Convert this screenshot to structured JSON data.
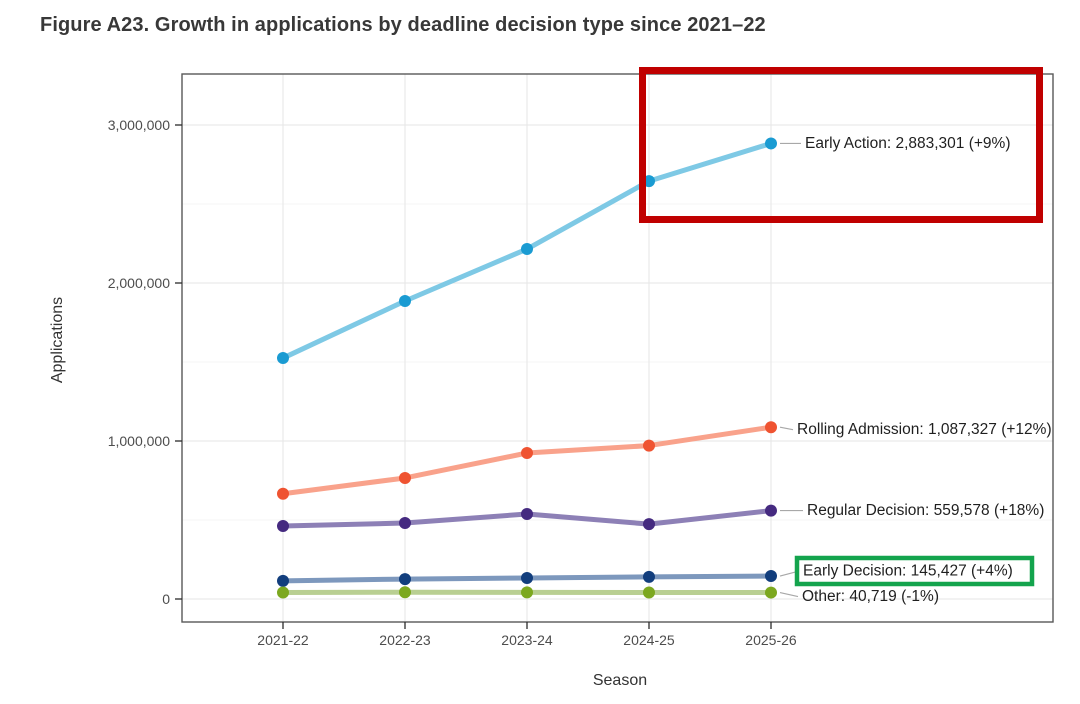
{
  "chart_data": {
    "type": "line",
    "title": "Figure A23. Growth in applications by deadline decision type since 2021–22",
    "xlabel": "Season",
    "ylabel": "Applications",
    "categories": [
      "2021-22",
      "2022-23",
      "2023-24",
      "2024-25",
      "2025-26"
    ],
    "y_axis": {
      "ticks": [
        0,
        1000000,
        2000000,
        3000000
      ],
      "tick_labels": [
        "0",
        "1,000,000",
        "2,000,000",
        "3,000,000"
      ],
      "minor_ticks": [
        500000,
        1500000,
        2500000
      ],
      "ylim": [
        -150000,
        3320000
      ]
    },
    "legend": "direct labels at right end of each line",
    "grid": {
      "major_color": "#e9e9e9",
      "minor_color": "#f4f4f4"
    },
    "series": [
      {
        "name": "Early Action",
        "values": [
          1525000,
          1886000,
          2215000,
          2645000,
          2883301
        ],
        "end_label": "Early Action: 2,883,301 (+9%)",
        "line_color": "#7ec9e5",
        "marker_color": "#1a9bd2"
      },
      {
        "name": "Rolling Admission",
        "values": [
          666000,
          766000,
          924000,
          971000,
          1087327
        ],
        "end_label": "Rolling Admission: 1,087,327 (+12%)",
        "line_color": "#f9a28b",
        "marker_color": "#ef5331"
      },
      {
        "name": "Regular Decision",
        "values": [
          462000,
          481000,
          538000,
          474000,
          559578
        ],
        "end_label": "Regular Decision: 559,578 (+18%)",
        "line_color": "#8d80b6",
        "marker_color": "#452a80"
      },
      {
        "name": "Early Decision",
        "values": [
          115000,
          126000,
          133000,
          140000,
          145427
        ],
        "end_label": "Early Decision: 145,427 (+4%)",
        "line_color": "#7d98bd",
        "marker_color": "#123e7d"
      },
      {
        "name": "Other",
        "values": [
          41000,
          43000,
          42000,
          41100,
          40719
        ],
        "end_label": "Other: 40,719 (-1%)",
        "line_color": "#b9cf92",
        "marker_color": "#7ca81f"
      }
    ]
  },
  "annotations": {
    "red_box": {
      "name": "red-highlight-box",
      "color": "#c00000"
    },
    "green_box": {
      "name": "green-highlight-box",
      "color": "#14a44d"
    }
  }
}
